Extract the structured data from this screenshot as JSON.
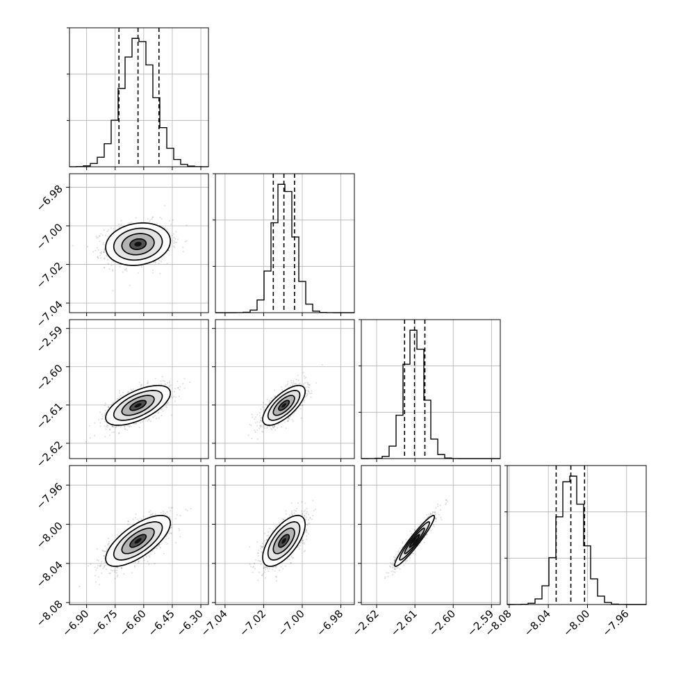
{
  "chart_data": {
    "type": "corner",
    "parameters": 4,
    "grid": true,
    "params": [
      {
        "index": 0,
        "mean": -6.63,
        "sd": 0.085,
        "quantiles": [
          -6.73,
          -6.63,
          -6.52
        ],
        "range": [
          -6.99,
          -6.26
        ],
        "ticks": [
          -6.9,
          -6.75,
          -6.6,
          -6.45,
          -6.3
        ],
        "tick_labels": [
          "−6.90",
          "−6.75",
          "−6.60",
          "−6.45",
          "−6.30"
        ]
      },
      {
        "index": 1,
        "mean": -7.0095,
        "sd": 0.0055,
        "quantiles": [
          -7.015,
          -7.0095,
          -7.004
        ],
        "range": [
          -7.045,
          -6.973
        ],
        "ticks": [
          -7.04,
          -7.02,
          -7.0,
          -6.98
        ],
        "tick_labels": [
          "−7.04",
          "−7.02",
          "−7.00",
          "−6.98"
        ]
      },
      {
        "index": 2,
        "mean": -2.6101,
        "sd": 0.0026,
        "quantiles": [
          -2.6127,
          -2.6101,
          -2.6074
        ],
        "range": [
          -2.624,
          -2.5877
        ],
        "ticks": [
          -2.62,
          -2.61,
          -2.6,
          -2.59
        ],
        "tick_labels": [
          "−2.62",
          "−2.61",
          "−2.60",
          "−2.59"
        ]
      },
      {
        "index": 3,
        "mean": -8.017,
        "sd": 0.013,
        "quantiles": [
          -8.032,
          -8.017,
          -8.003
        ],
        "range": [
          -8.082,
          -7.94
        ],
        "ticks": [
          -8.08,
          -8.04,
          -8.0,
          -7.96
        ],
        "tick_labels": [
          "−8.08",
          "−8.04",
          "−8.00",
          "−7.96"
        ]
      }
    ],
    "correlations": [
      {
        "pair": [
          0,
          1
        ],
        "rho": 0.15
      },
      {
        "pair": [
          0,
          2
        ],
        "rho": 0.62
      },
      {
        "pair": [
          0,
          3
        ],
        "rho": 0.7
      },
      {
        "pair": [
          1,
          2
        ],
        "rho": 0.7
      },
      {
        "pair": [
          1,
          3
        ],
        "rho": 0.65
      },
      {
        "pair": [
          2,
          3
        ],
        "rho": 0.95
      }
    ],
    "contour_levels_sigma": [
      0.5,
      1.0,
      1.5,
      2.0
    ],
    "quantile_line_style": "dashed"
  }
}
